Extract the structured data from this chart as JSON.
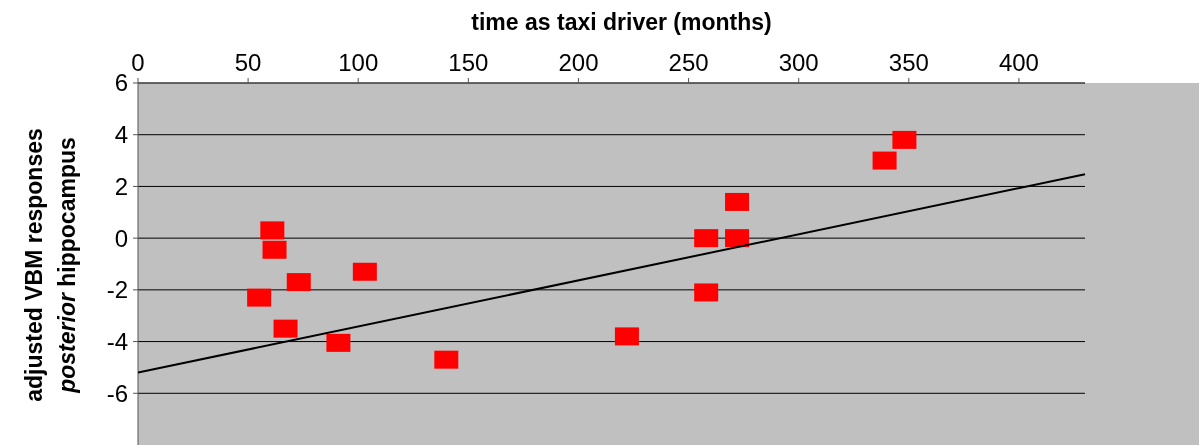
{
  "chart_data": {
    "type": "scatter",
    "xlabel": "time as taxi driver (months)",
    "ylabel": "adjusted VBM responses\nposterior hippocampus",
    "xlim": [
      0,
      430
    ],
    "xticks": [
      0,
      50,
      100,
      150,
      200,
      250,
      300,
      350,
      400
    ],
    "ylim": [
      -8,
      6
    ],
    "yticks": [
      -6,
      -4,
      -2,
      0,
      2,
      4,
      6
    ],
    "grid": "y",
    "series": [
      {
        "color": "#ff0000",
        "marker": "square",
        "x": [
          61,
          62,
          73,
          55,
          67,
          91,
          103,
          140,
          222,
          258,
          258,
          272,
          272,
          339,
          348
        ],
        "values": [
          0.3,
          -0.45,
          -1.7,
          -2.3,
          -3.5,
          -4.05,
          -1.3,
          -4.7,
          -3.8,
          0,
          -2.1,
          0,
          1.4,
          3.0,
          3.8
        ]
      },
      {
        "type": "line",
        "color": "#000000",
        "marker": "none",
        "x": [
          0,
          430
        ],
        "values": [
          -5.2,
          2.47
        ]
      }
    ]
  }
}
